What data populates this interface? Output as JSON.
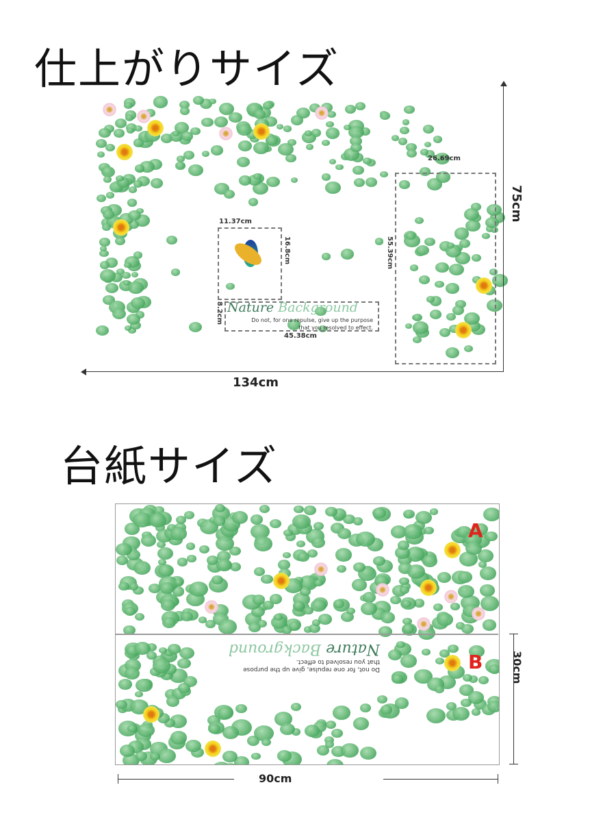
{
  "sections": {
    "finished": {
      "title": "仕上がりサイズ",
      "width": "134cm",
      "height": "75cm",
      "parrot_width": "11.37cm",
      "parrot_height": "16.8cm",
      "text_height": "8.2cm",
      "text_width": "45.38cm",
      "right_width": "26.69cm",
      "right_height": "55.39cm"
    },
    "backing": {
      "title": "台紙サイズ",
      "width": "90cm",
      "height": "30cm",
      "sheet_a": "A",
      "sheet_b": "B"
    }
  },
  "artwork": {
    "heading_word1": "Nature",
    "heading_word2": "Background",
    "quote_line1": "Do not, for one repulse, give up the purpose",
    "quote_line2": "that you resolved to effect."
  },
  "colors": {
    "leaf": "#4daa63",
    "label_red": "#e0241c",
    "dash": "#777777"
  }
}
